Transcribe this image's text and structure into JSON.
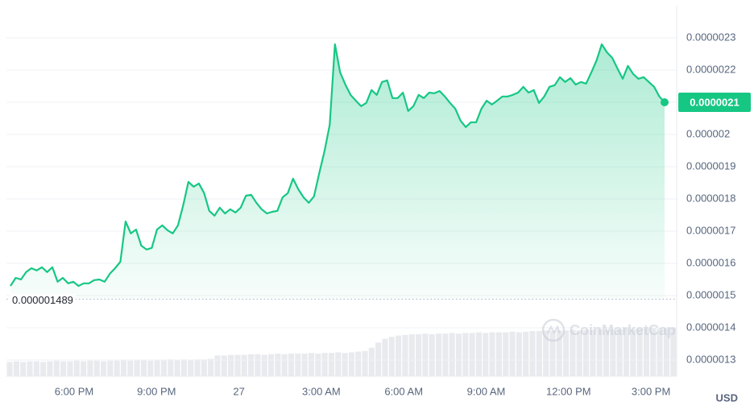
{
  "chart_data": {
    "type": "line",
    "color": "#16c784",
    "grid": true,
    "ylim": [
      1.25e-06,
      2.4e-06
    ],
    "yticks": [
      2.3e-06,
      2.2e-06,
      2.1e-06,
      2e-06,
      1.9e-06,
      1.8e-06,
      1.7e-06,
      1.6e-06,
      1.5e-06,
      1.4e-06,
      1.3e-06
    ],
    "xtick_labels": [
      "6:00 PM",
      "9:00 PM",
      "27",
      "3:00 AM",
      "6:00 AM",
      "9:00 AM",
      "12:00 PM",
      "3:00 PM"
    ],
    "values": [
      1.53e-06,
      1.555e-06,
      1.55e-06,
      1.573e-06,
      1.585e-06,
      1.578e-06,
      1.588e-06,
      1.573e-06,
      1.588e-06,
      1.543e-06,
      1.555e-06,
      1.538e-06,
      1.543e-06,
      1.53e-06,
      1.538e-06,
      1.538e-06,
      1.548e-06,
      1.55e-06,
      1.543e-06,
      1.568e-06,
      1.585e-06,
      1.605e-06,
      1.73e-06,
      1.693e-06,
      1.705e-06,
      1.655e-06,
      1.643e-06,
      1.648e-06,
      1.705e-06,
      1.718e-06,
      1.703e-06,
      1.693e-06,
      1.718e-06,
      1.78e-06,
      1.853e-06,
      1.838e-06,
      1.848e-06,
      1.818e-06,
      1.763e-06,
      1.748e-06,
      1.773e-06,
      1.755e-06,
      1.768e-06,
      1.758e-06,
      1.773e-06,
      1.81e-06,
      1.813e-06,
      1.788e-06,
      1.768e-06,
      1.755e-06,
      1.76e-06,
      1.763e-06,
      1.805e-06,
      1.818e-06,
      1.863e-06,
      1.83e-06,
      1.805e-06,
      1.788e-06,
      1.808e-06,
      1.88e-06,
      1.948e-06,
      2.03e-06,
      2.28e-06,
      2.193e-06,
      2.155e-06,
      2.123e-06,
      2.105e-06,
      2.088e-06,
      2.098e-06,
      2.138e-06,
      2.123e-06,
      2.163e-06,
      2.168e-06,
      2.113e-06,
      2.113e-06,
      2.13e-06,
      2.073e-06,
      2.088e-06,
      2.123e-06,
      2.113e-06,
      2.13e-06,
      2.128e-06,
      2.135e-06,
      2.118e-06,
      2.098e-06,
      2.08e-06,
      2.043e-06,
      2.023e-06,
      2.038e-06,
      2.038e-06,
      2.08e-06,
      2.105e-06,
      2.093e-06,
      2.105e-06,
      2.118e-06,
      2.118e-06,
      2.123e-06,
      2.13e-06,
      2.148e-06,
      2.13e-06,
      2.138e-06,
      2.098e-06,
      2.118e-06,
      2.148e-06,
      2.153e-06,
      2.178e-06,
      2.163e-06,
      2.175e-06,
      2.155e-06,
      2.163e-06,
      2.158e-06,
      2.193e-06,
      2.23e-06,
      2.28e-06,
      2.255e-06,
      2.238e-06,
      2.205e-06,
      2.173e-06,
      2.213e-06,
      2.188e-06,
      2.173e-06,
      2.178e-06,
      2.163e-06,
      2.148e-06,
      2.118e-06,
      2.1e-06
    ],
    "baseline": 1.489e-06,
    "current_price": 2.1e-06,
    "volume": {
      "vlim": [
        0,
        100
      ],
      "values": [
        22,
        23,
        22,
        23,
        23,
        22,
        23,
        24,
        23,
        23,
        24,
        23,
        24,
        24,
        23,
        24,
        24,
        25,
        24,
        25,
        25,
        24,
        25,
        25,
        26,
        25,
        26,
        25,
        26,
        26,
        27,
        32,
        32,
        33,
        33,
        33,
        34,
        34,
        33,
        34,
        35,
        34,
        35,
        35,
        35,
        36,
        35,
        36,
        36,
        37,
        36,
        37,
        38,
        39,
        44,
        52,
        58,
        61,
        63,
        64,
        65,
        65,
        66,
        65,
        66,
        66,
        67,
        66,
        67,
        67,
        68,
        67,
        68,
        68,
        68,
        69,
        68,
        69,
        70,
        70,
        71,
        70,
        71,
        71,
        72,
        71,
        72,
        72,
        73,
        72,
        73,
        73,
        74,
        73,
        74,
        74,
        75,
        74,
        75,
        75
      ]
    },
    "watermark": "CoinMarketCap",
    "currency": "USD"
  }
}
